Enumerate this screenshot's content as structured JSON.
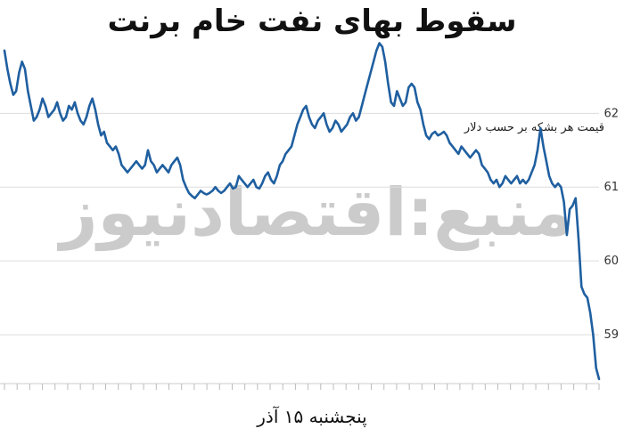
{
  "chart_data": {
    "type": "line",
    "title": "سقوط بهای نفت خام برنت",
    "xlabel": "پنجشنبه ۱۵ آذر",
    "ylabel": "قیمت هر بشکه بر حسب دلار",
    "ylim": [
      58.35,
      62.45
    ],
    "yticks": [
      59,
      60,
      61,
      62
    ],
    "grid": "horizontal",
    "series_color": "#1f5fa0",
    "series": [
      {
        "values": [
          62.85,
          62.6,
          62.4,
          62.25,
          62.3,
          62.55,
          62.7,
          62.6,
          62.3,
          62.1,
          61.9,
          61.95,
          62.05,
          62.2,
          62.1,
          61.95,
          62.0,
          62.05,
          62.15,
          62.0,
          61.9,
          61.95,
          62.1,
          62.05,
          62.15,
          62.0,
          61.9,
          61.85,
          61.95,
          62.1,
          62.2,
          62.05,
          61.85,
          61.7,
          61.75,
          61.6,
          61.55,
          61.5,
          61.55,
          61.45,
          61.3,
          61.25,
          61.2,
          61.25,
          61.3,
          61.35,
          61.3,
          61.25,
          61.3,
          61.5,
          61.35,
          61.3,
          61.2,
          61.25,
          61.3,
          61.25,
          61.2,
          61.3,
          61.35,
          61.4,
          61.3,
          61.1,
          61.0,
          60.92,
          60.88,
          60.85,
          60.9,
          60.95,
          60.92,
          60.9,
          60.92,
          60.95,
          61.0,
          60.95,
          60.92,
          60.95,
          61.0,
          61.05,
          60.98,
          61.0,
          61.15,
          61.1,
          61.05,
          61.0,
          61.05,
          61.1,
          61.0,
          60.98,
          61.05,
          61.15,
          61.2,
          61.1,
          61.05,
          61.15,
          61.3,
          61.35,
          61.45,
          61.5,
          61.55,
          61.7,
          61.85,
          61.95,
          62.05,
          62.1,
          61.95,
          61.85,
          61.8,
          61.9,
          61.95,
          62.0,
          61.85,
          61.75,
          61.8,
          61.9,
          61.85,
          61.75,
          61.8,
          61.85,
          61.95,
          62.0,
          61.9,
          61.95,
          62.1,
          62.25,
          62.4,
          62.55,
          62.7,
          62.85,
          62.95,
          62.9,
          62.7,
          62.4,
          62.15,
          62.1,
          62.3,
          62.2,
          62.1,
          62.15,
          62.35,
          62.4,
          62.35,
          62.15,
          62.05,
          61.85,
          61.7,
          61.65,
          61.72,
          61.75,
          61.7,
          61.72,
          61.75,
          61.7,
          61.6,
          61.55,
          61.5,
          61.45,
          61.55,
          61.5,
          61.45,
          61.4,
          61.45,
          61.5,
          61.45,
          61.3,
          61.25,
          61.2,
          61.1,
          61.05,
          61.1,
          61.0,
          61.05,
          61.15,
          61.1,
          61.05,
          61.1,
          61.15,
          61.05,
          61.1,
          61.05,
          61.1,
          61.2,
          61.3,
          61.5,
          61.8,
          61.55,
          61.35,
          61.15,
          61.05,
          61.0,
          61.05,
          61.0,
          60.8,
          60.35,
          60.7,
          60.75,
          60.85,
          60.3,
          59.65,
          59.55,
          59.5,
          59.3,
          59.0,
          58.55,
          58.4
        ]
      }
    ]
  },
  "watermark_text": "منبع:اقتصادنیوز"
}
